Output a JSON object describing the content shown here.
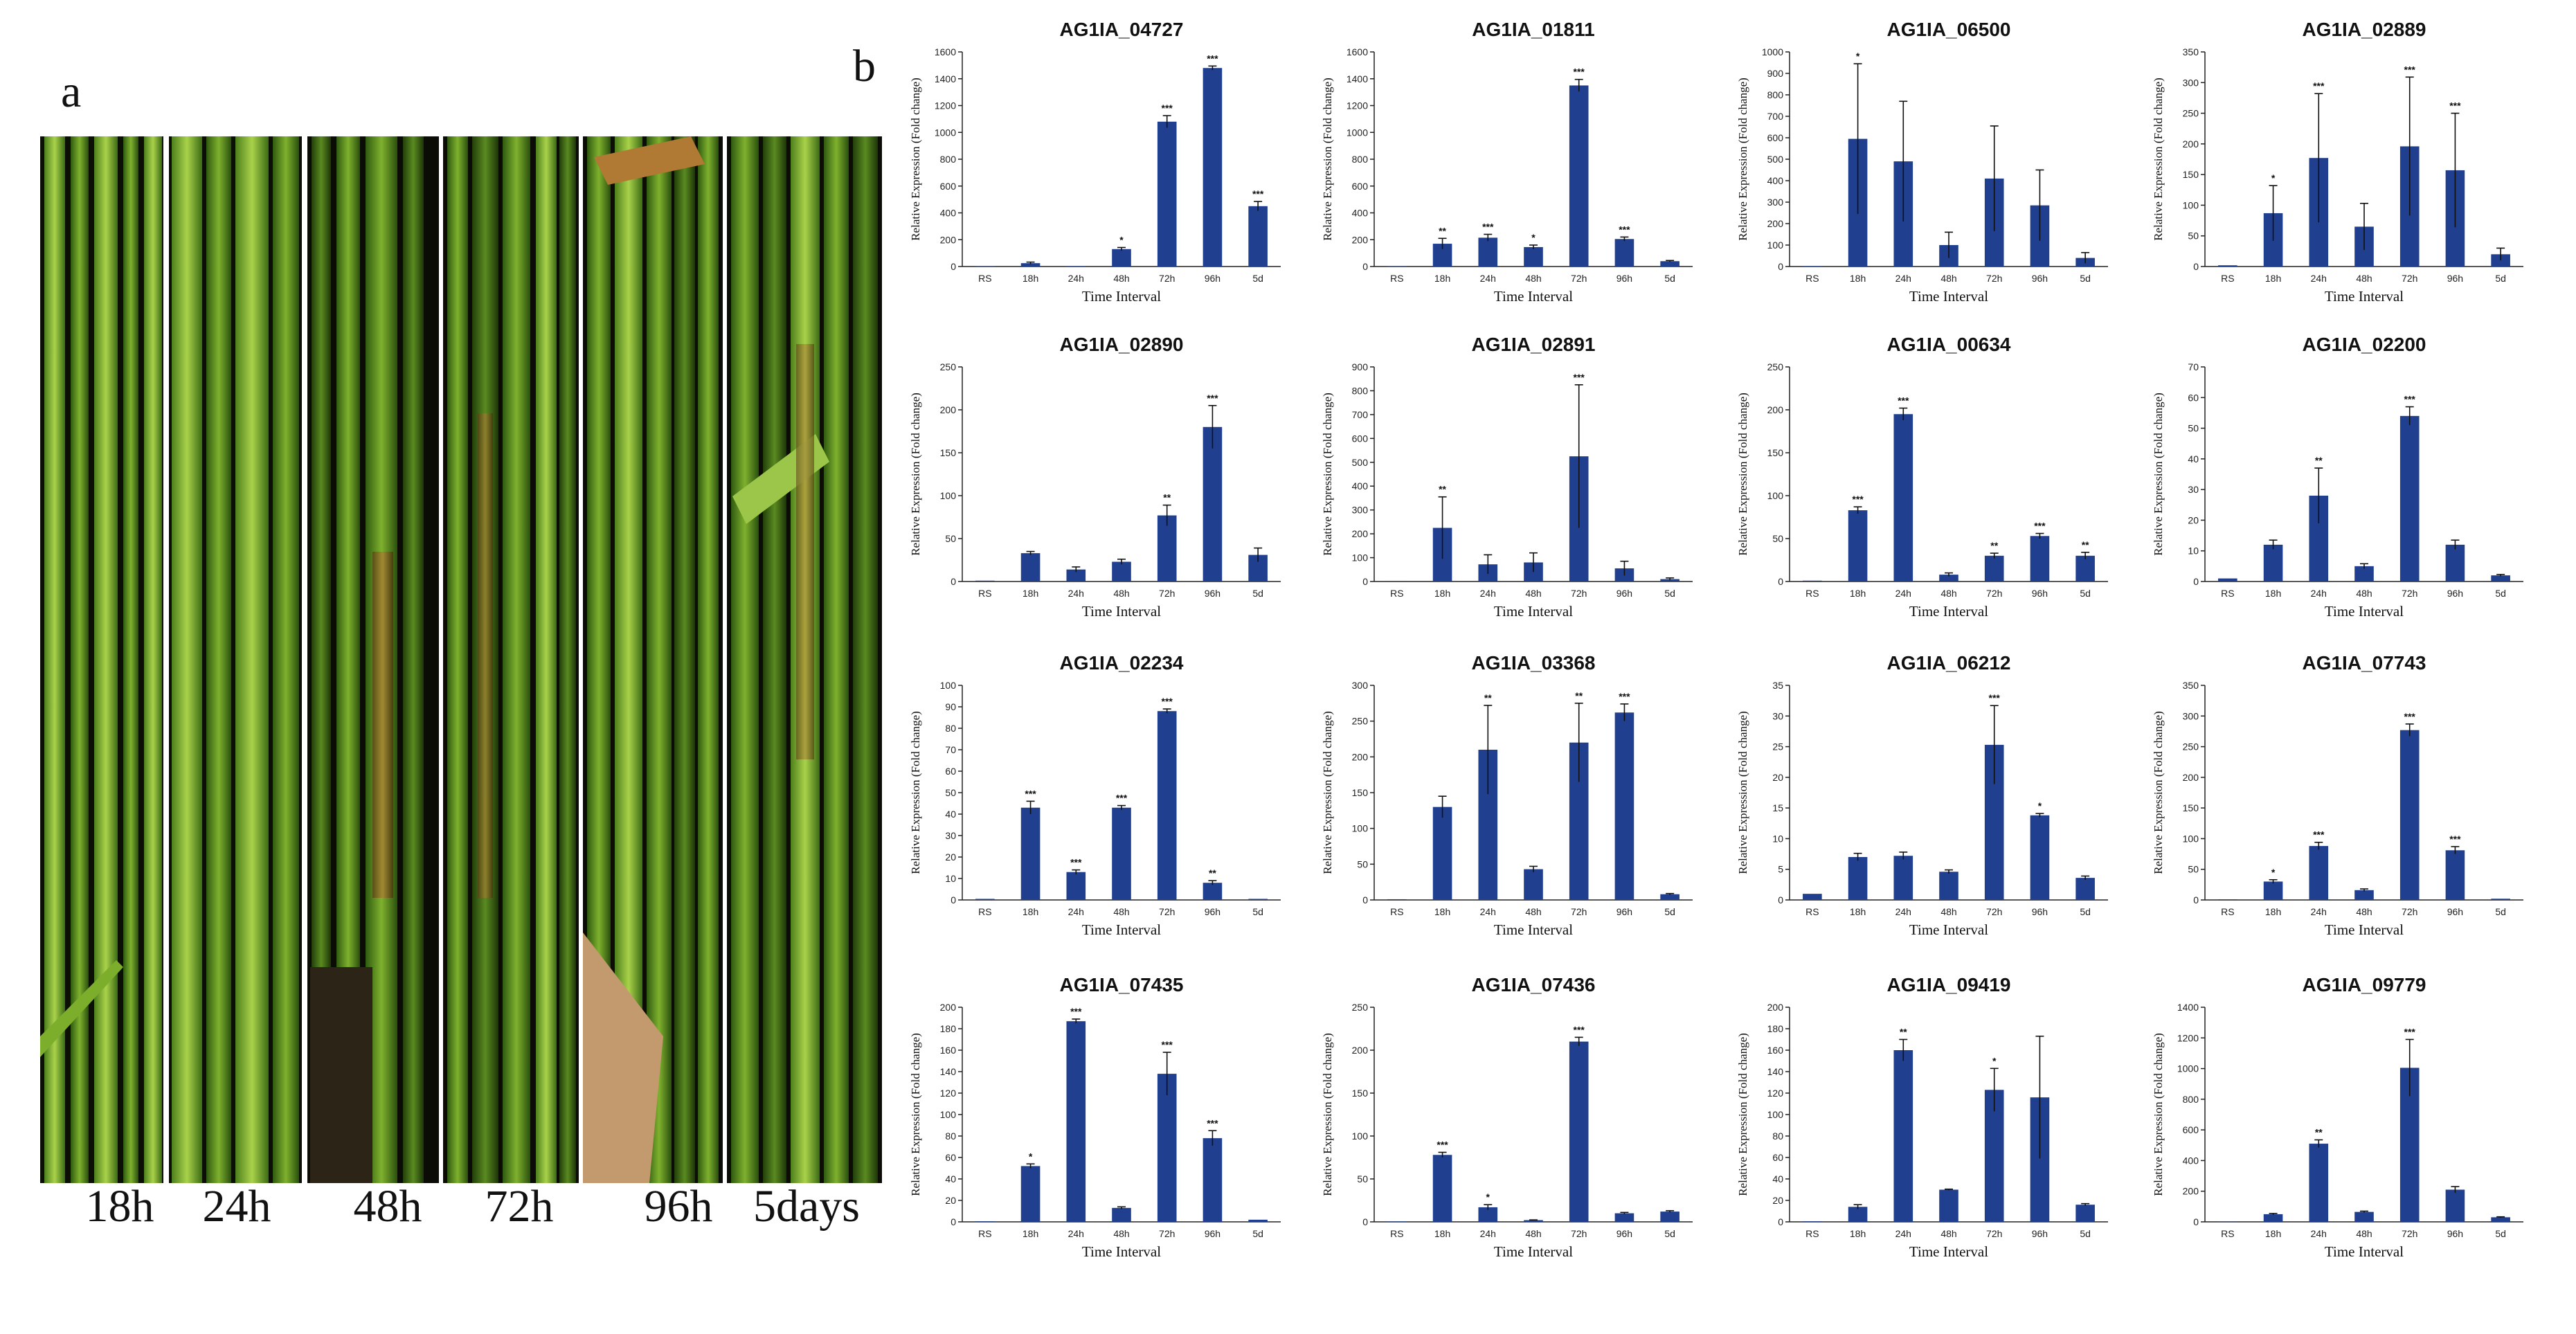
{
  "panel_labels": {
    "a": "a",
    "b": "b"
  },
  "photos": {
    "labels": [
      "18h",
      "24h",
      "48h",
      "72h",
      "96h",
      "5days"
    ]
  },
  "colors": {
    "bar": "#203f8f",
    "axis": "#222222",
    "error": "#111111"
  },
  "chart_data": [
    {
      "type": "bar",
      "title": "AG1IA_04727",
      "ylim": [
        0,
        1600
      ],
      "yticks": [
        0,
        200,
        400,
        600,
        800,
        1000,
        1200,
        1400,
        1600
      ],
      "categories": [
        "RS",
        "18h",
        "24h",
        "48h",
        "72h",
        "96h",
        "5d"
      ],
      "values": [
        2,
        25,
        3,
        130,
        1080,
        1480,
        450
      ],
      "errors": [
        0,
        8,
        0,
        12,
        45,
        15,
        35
      ],
      "significance": [
        "",
        "",
        "",
        "*",
        "***",
        "***",
        "***"
      ],
      "xlabel": "Time Interval",
      "ylabel": "Relative Expression (Fold change)"
    },
    {
      "type": "bar",
      "title": "AG1IA_01811",
      "ylim": [
        0,
        1600
      ],
      "yticks": [
        0,
        200,
        400,
        600,
        800,
        1000,
        1200,
        1400,
        1600
      ],
      "categories": [
        "RS",
        "18h",
        "24h",
        "48h",
        "72h",
        "96h",
        "5d"
      ],
      "values": [
        2,
        170,
        215,
        145,
        1350,
        205,
        40
      ],
      "errors": [
        0,
        40,
        25,
        15,
        45,
        15,
        5
      ],
      "significance": [
        "",
        "**",
        "***",
        "*",
        "***",
        "***",
        ""
      ],
      "xlabel": "Time Interval",
      "ylabel": "Relative Expression (Fold change)"
    },
    {
      "type": "bar",
      "title": "AG1IA_06500",
      "ylim": [
        0,
        1000
      ],
      "yticks": [
        0,
        100,
        200,
        300,
        400,
        500,
        600,
        700,
        800,
        900,
        1000
      ],
      "categories": [
        "RS",
        "18h",
        "24h",
        "48h",
        "72h",
        "96h",
        "5d"
      ],
      "values": [
        2,
        595,
        490,
        100,
        410,
        285,
        40
      ],
      "errors": [
        0,
        350,
        280,
        60,
        245,
        165,
        25
      ],
      "significance": [
        "",
        "*",
        "",
        "",
        "",
        "",
        ""
      ],
      "xlabel": "Time Interval",
      "ylabel": "Relative Expression (Fold change)"
    },
    {
      "type": "bar",
      "title": "AG1IA_02889",
      "ylim": [
        0,
        350
      ],
      "yticks": [
        0,
        50,
        100,
        150,
        200,
        250,
        300,
        350
      ],
      "categories": [
        "RS",
        "18h",
        "24h",
        "48h",
        "72h",
        "96h",
        "5d"
      ],
      "values": [
        2,
        87,
        177,
        65,
        196,
        157,
        20
      ],
      "errors": [
        0,
        45,
        105,
        38,
        113,
        93,
        10
      ],
      "significance": [
        "",
        "*",
        "***",
        "",
        "***",
        "***",
        ""
      ],
      "xlabel": "Time Interval",
      "ylabel": "Relative Expression (Fold change)"
    },
    {
      "type": "bar",
      "title": "AG1IA_02890",
      "ylim": [
        0,
        250
      ],
      "yticks": [
        0,
        50,
        100,
        150,
        200,
        250
      ],
      "categories": [
        "RS",
        "18h",
        "24h",
        "48h",
        "72h",
        "96h",
        "5d"
      ],
      "values": [
        1,
        33,
        14,
        23,
        77,
        180,
        31
      ],
      "errors": [
        0,
        2,
        3,
        3,
        12,
        25,
        8
      ],
      "significance": [
        "",
        "",
        "",
        "",
        "**",
        "***",
        ""
      ],
      "xlabel": "Time Interval",
      "ylabel": "Relative Expression (Fold change)"
    },
    {
      "type": "bar",
      "title": "AG1IA_02891",
      "ylim": [
        0,
        900
      ],
      "yticks": [
        0,
        100,
        200,
        300,
        400,
        500,
        600,
        700,
        800,
        900
      ],
      "categories": [
        "RS",
        "18h",
        "24h",
        "48h",
        "72h",
        "96h",
        "5d"
      ],
      "values": [
        2,
        225,
        72,
        80,
        525,
        55,
        10
      ],
      "errors": [
        0,
        130,
        40,
        40,
        300,
        30,
        5
      ],
      "significance": [
        "",
        "**",
        "",
        "",
        "***",
        "",
        ""
      ],
      "xlabel": "Time Interval",
      "ylabel": "Relative Expression (Fold change)"
    },
    {
      "type": "bar",
      "title": "AG1IA_00634",
      "ylim": [
        0,
        250
      ],
      "yticks": [
        0,
        50,
        100,
        150,
        200,
        250
      ],
      "categories": [
        "RS",
        "18h",
        "24h",
        "48h",
        "72h",
        "96h",
        "5d"
      ],
      "values": [
        1,
        83,
        195,
        8,
        30,
        53,
        30
      ],
      "errors": [
        0,
        4,
        7,
        2,
        3,
        3,
        4
      ],
      "significance": [
        "",
        "***",
        "***",
        "",
        "**",
        "***",
        "**"
      ],
      "xlabel": "Time Interval",
      "ylabel": "Relative Expression (Fold change)"
    },
    {
      "type": "bar",
      "title": "AG1IA_02200",
      "ylim": [
        0,
        70
      ],
      "yticks": [
        0,
        10,
        20,
        30,
        40,
        50,
        60,
        70
      ],
      "categories": [
        "RS",
        "18h",
        "24h",
        "48h",
        "72h",
        "96h",
        "5d"
      ],
      "values": [
        1,
        12,
        28,
        5,
        54,
        12,
        2
      ],
      "errors": [
        0,
        1.5,
        9,
        0.8,
        3,
        1.5,
        0.3
      ],
      "significance": [
        "",
        "",
        "**",
        "",
        "***",
        "",
        ""
      ],
      "xlabel": "Time Interval",
      "ylabel": "Relative Expression (Fold change)"
    },
    {
      "type": "bar",
      "title": "AG1IA_02234",
      "ylim": [
        0,
        100
      ],
      "yticks": [
        0,
        10,
        20,
        30,
        40,
        50,
        60,
        70,
        80,
        90,
        100
      ],
      "categories": [
        "RS",
        "18h",
        "24h",
        "48h",
        "72h",
        "96h",
        "5d"
      ],
      "values": [
        0.5,
        43,
        13,
        43,
        88,
        8,
        0.5
      ],
      "errors": [
        0,
        3,
        1,
        1,
        1,
        1,
        0
      ],
      "significance": [
        "",
        "***",
        "***",
        "***",
        "***",
        "**",
        ""
      ],
      "xlabel": "Time Interval",
      "ylabel": "Relative Expression (Fold change)"
    },
    {
      "type": "bar",
      "title": "AG1IA_03368",
      "ylim": [
        0,
        300
      ],
      "yticks": [
        0,
        50,
        100,
        150,
        200,
        250,
        300
      ],
      "categories": [
        "RS",
        "18h",
        "24h",
        "48h",
        "72h",
        "96h",
        "5d"
      ],
      "values": [
        1,
        130,
        210,
        43,
        220,
        262,
        8
      ],
      "errors": [
        0,
        15,
        62,
        4,
        55,
        12,
        1
      ],
      "significance": [
        "",
        "",
        "**",
        "",
        "**",
        "***",
        ""
      ],
      "xlabel": "Time Interval",
      "ylabel": "Relative Expression (Fold change)"
    },
    {
      "type": "bar",
      "title": "AG1IA_06212",
      "ylim": [
        0,
        35
      ],
      "yticks": [
        0,
        5,
        10,
        15,
        20,
        25,
        30,
        35
      ],
      "categories": [
        "RS",
        "18h",
        "24h",
        "48h",
        "72h",
        "96h",
        "5d"
      ],
      "values": [
        1,
        7,
        7.2,
        4.6,
        25.3,
        13.8,
        3.6
      ],
      "errors": [
        0,
        0.6,
        0.6,
        0.3,
        6.4,
        0.3,
        0.3
      ],
      "significance": [
        "",
        "",
        "",
        "",
        "***",
        "*",
        ""
      ],
      "xlabel": "Time Interval",
      "ylabel": "Relative Expression (Fold change)"
    },
    {
      "type": "bar",
      "title": "AG1IA_07743",
      "ylim": [
        0,
        350
      ],
      "yticks": [
        0,
        50,
        100,
        150,
        200,
        250,
        300,
        350
      ],
      "categories": [
        "RS",
        "18h",
        "24h",
        "48h",
        "72h",
        "96h",
        "5d"
      ],
      "values": [
        1,
        30,
        88,
        16,
        277,
        81,
        2
      ],
      "errors": [
        0,
        3,
        6,
        2,
        10,
        6,
        0
      ],
      "significance": [
        "",
        "*",
        "***",
        "",
        "***",
        "***",
        ""
      ],
      "xlabel": "Time Interval",
      "ylabel": "Relative Expression (Fold change)"
    },
    {
      "type": "bar",
      "title": "AG1IA_07435",
      "ylim": [
        0,
        200
      ],
      "yticks": [
        0,
        20,
        40,
        60,
        80,
        100,
        120,
        140,
        160,
        180,
        200
      ],
      "categories": [
        "RS",
        "18h",
        "24h",
        "48h",
        "72h",
        "96h",
        "5d"
      ],
      "values": [
        0.5,
        52,
        187,
        13,
        138,
        78,
        2
      ],
      "errors": [
        0,
        2,
        2,
        1,
        20,
        7,
        0
      ],
      "significance": [
        "",
        "*",
        "***",
        "",
        "***",
        "***",
        ""
      ],
      "xlabel": "Time Interval",
      "ylabel": "Relative Expression (Fold change)"
    },
    {
      "type": "bar",
      "title": "AG1IA_07436",
      "ylim": [
        0,
        250
      ],
      "yticks": [
        0,
        50,
        100,
        150,
        200,
        250
      ],
      "categories": [
        "RS",
        "18h",
        "24h",
        "48h",
        "72h",
        "96h",
        "5d"
      ],
      "values": [
        0.5,
        78,
        17,
        2,
        210,
        10,
        12
      ],
      "errors": [
        0,
        3,
        3,
        0.3,
        5,
        1,
        1
      ],
      "significance": [
        "",
        "***",
        "*",
        "",
        "***",
        "",
        ""
      ],
      "xlabel": "Time Interval",
      "ylabel": "Relative Expression (Fold change)"
    },
    {
      "type": "bar",
      "title": "AG1IA_09419",
      "ylim": [
        0,
        200
      ],
      "yticks": [
        0,
        20,
        40,
        60,
        80,
        100,
        120,
        140,
        160,
        180,
        200
      ],
      "categories": [
        "RS",
        "18h",
        "24h",
        "48h",
        "72h",
        "96h",
        "5d"
      ],
      "values": [
        0.5,
        14,
        160,
        30,
        123,
        116,
        16
      ],
      "errors": [
        0,
        2,
        10,
        0.5,
        20,
        57,
        1
      ],
      "significance": [
        "",
        "",
        "**",
        "",
        "*",
        "",
        ""
      ],
      "xlabel": "Time Interval",
      "ylabel": "Relative Expression (Fold change)"
    },
    {
      "type": "bar",
      "title": "AG1IA_09779",
      "ylim": [
        0,
        1400
      ],
      "yticks": [
        0,
        200,
        400,
        600,
        800,
        1000,
        1200,
        1400
      ],
      "categories": [
        "RS",
        "18h",
        "24h",
        "48h",
        "72h",
        "96h",
        "5d"
      ],
      "values": [
        1,
        50,
        510,
        65,
        1005,
        210,
        30
      ],
      "errors": [
        0,
        5,
        25,
        5,
        185,
        20,
        3
      ],
      "significance": [
        "",
        "",
        "**",
        "",
        "***",
        "",
        ""
      ],
      "xlabel": "Time Interval",
      "ylabel": "Relative Expression (Fold change)"
    }
  ]
}
